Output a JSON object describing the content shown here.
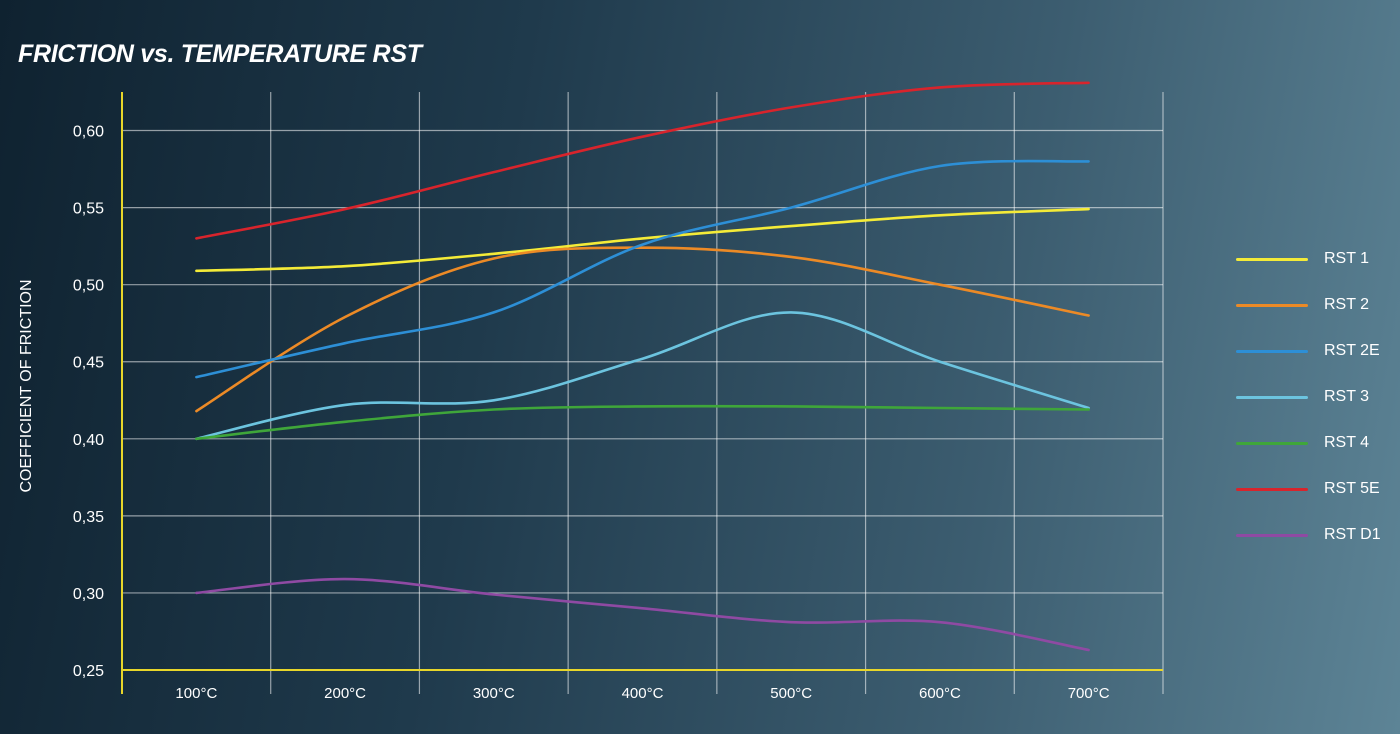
{
  "chart_data": {
    "type": "line",
    "title": "FRICTION vs. TEMPERATURE RST",
    "ylabel": "COEFFICIENT OF FRICTION",
    "xlabel": "",
    "categories": [
      "100°C",
      "200°C",
      "300°C",
      "400°C",
      "500°C",
      "600°C",
      "700°C"
    ],
    "x": [
      100,
      200,
      300,
      400,
      500,
      600,
      700
    ],
    "xlim": [
      50,
      750
    ],
    "ylim": [
      0.25,
      0.625
    ],
    "yticks": [
      "0,25",
      "0,30",
      "0,35",
      "0,40",
      "0,45",
      "0,50",
      "0,55",
      "0,60"
    ],
    "ytick_values": [
      0.25,
      0.3,
      0.35,
      0.4,
      0.45,
      0.5,
      0.55,
      0.6
    ],
    "grid": true,
    "legend_position": "right",
    "series": [
      {
        "name": "RST 1",
        "color": "#f4eb38",
        "values": [
          0.509,
          0.512,
          0.52,
          0.53,
          0.538,
          0.545,
          0.549
        ]
      },
      {
        "name": "RST 2",
        "color": "#ec8a26",
        "values": [
          0.418,
          0.479,
          0.517,
          0.524,
          0.518,
          0.5,
          0.48
        ]
      },
      {
        "name": "RST 2E",
        "color": "#2d8fd6",
        "values": [
          0.44,
          0.462,
          0.482,
          0.526,
          0.55,
          0.577,
          0.58
        ]
      },
      {
        "name": "RST 3",
        "color": "#6cc4df",
        "values": [
          0.4,
          0.422,
          0.425,
          0.452,
          0.482,
          0.45,
          0.42
        ]
      },
      {
        "name": "RST 4",
        "color": "#3fa63a",
        "values": [
          0.4,
          0.411,
          0.419,
          0.421,
          0.421,
          0.42,
          0.419
        ]
      },
      {
        "name": "RST 5E",
        "color": "#d8242c",
        "values": [
          0.53,
          0.549,
          0.573,
          0.596,
          0.615,
          0.628,
          0.631
        ]
      },
      {
        "name": "RST D1",
        "color": "#8f4aa3",
        "values": [
          0.3,
          0.309,
          0.299,
          0.29,
          0.281,
          0.281,
          0.263
        ]
      }
    ]
  }
}
